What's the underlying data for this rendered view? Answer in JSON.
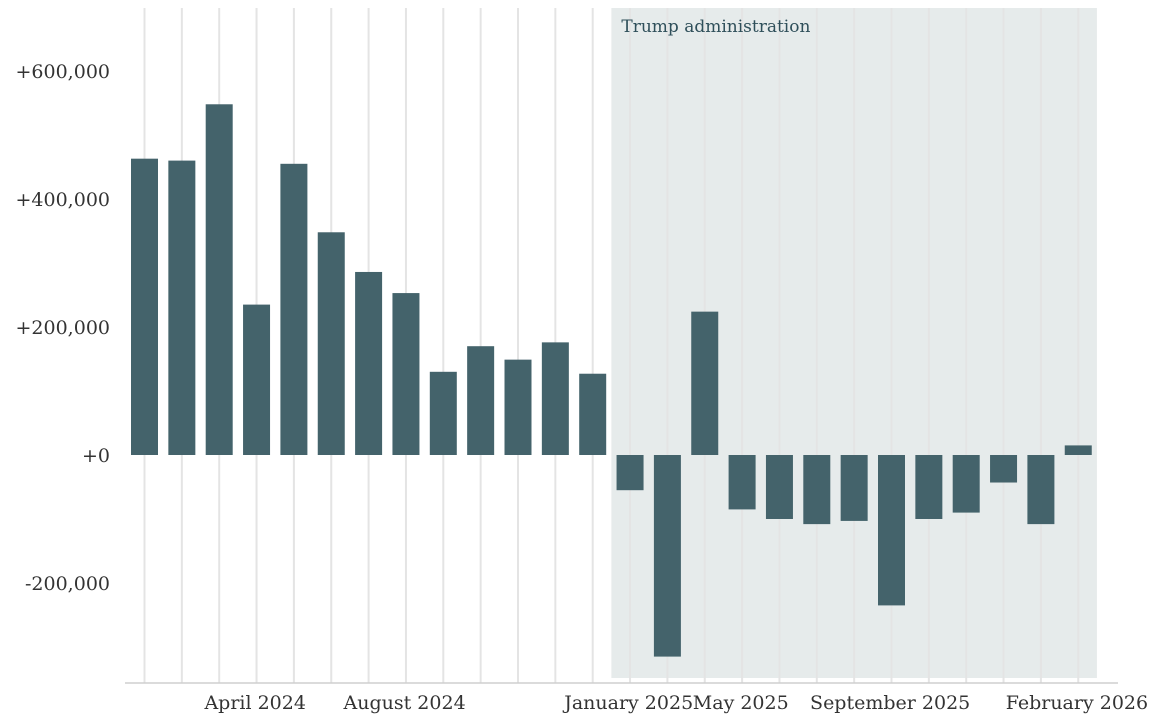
{
  "chart_data": {
    "type": "bar",
    "title": "",
    "xlabel": "",
    "ylabel": "",
    "ylim": [
      -330000,
      700000
    ],
    "y_ticks": [
      {
        "value": 600000,
        "label": "+600,000"
      },
      {
        "value": 400000,
        "label": "+400,000"
      },
      {
        "value": 200000,
        "label": "+200,000"
      },
      {
        "value": 0,
        "label": "+0"
      },
      {
        "value": -200000,
        "label": "-200,000"
      }
    ],
    "x_tick_labels": [
      {
        "index": 2,
        "label": "April 2024"
      },
      {
        "index": 6,
        "label": "August 2024"
      },
      {
        "index": 12,
        "label": "January 2025"
      },
      {
        "index": 15,
        "label": "May 2025"
      },
      {
        "index": 19,
        "label": "September 2025"
      },
      {
        "index": 24,
        "label": "February 2026"
      }
    ],
    "values": [
      463000,
      460000,
      548000,
      235000,
      455000,
      348000,
      286000,
      253000,
      130000,
      170000,
      149000,
      176000,
      127000,
      -55000,
      -315000,
      224000,
      -85000,
      -100000,
      -108000,
      -103000,
      -235000,
      -100000,
      -90000,
      -43000,
      -108000,
      15000
    ],
    "bar_color": "#44636b",
    "shaded_region": {
      "label": "Trump administration",
      "start_index": 13,
      "end_index": 25,
      "color": "#e6ebeb"
    },
    "grid": true
  }
}
